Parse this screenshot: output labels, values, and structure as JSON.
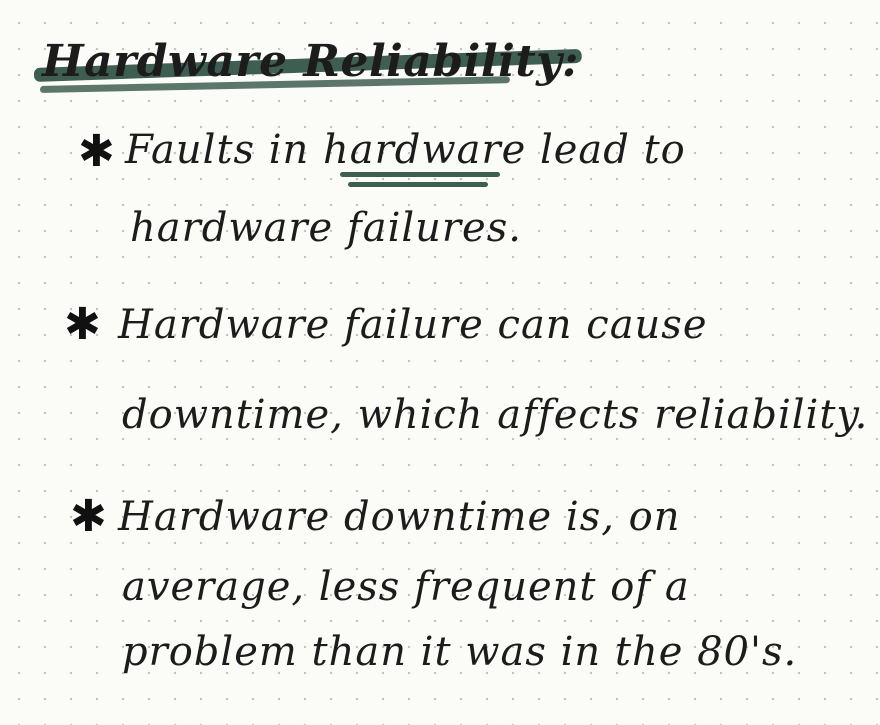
{
  "title": "Hardware Reliability:",
  "bullets": [
    {
      "marker": "✱",
      "lines": [
        "Faults in hardware lead to",
        "hardware failures."
      ]
    },
    {
      "marker": "✱",
      "lines": [
        "Hardware failure can cause",
        "downtime, which affects reliability."
      ]
    },
    {
      "marker": "✱",
      "lines": [
        "Hardware downtime is, on",
        "average, less frequent of a",
        "problem than it was in the 80's."
      ]
    }
  ],
  "colors": {
    "accent": "#3f5e52",
    "ink": "#1c1c1c",
    "paper": "#fbfbf8"
  }
}
